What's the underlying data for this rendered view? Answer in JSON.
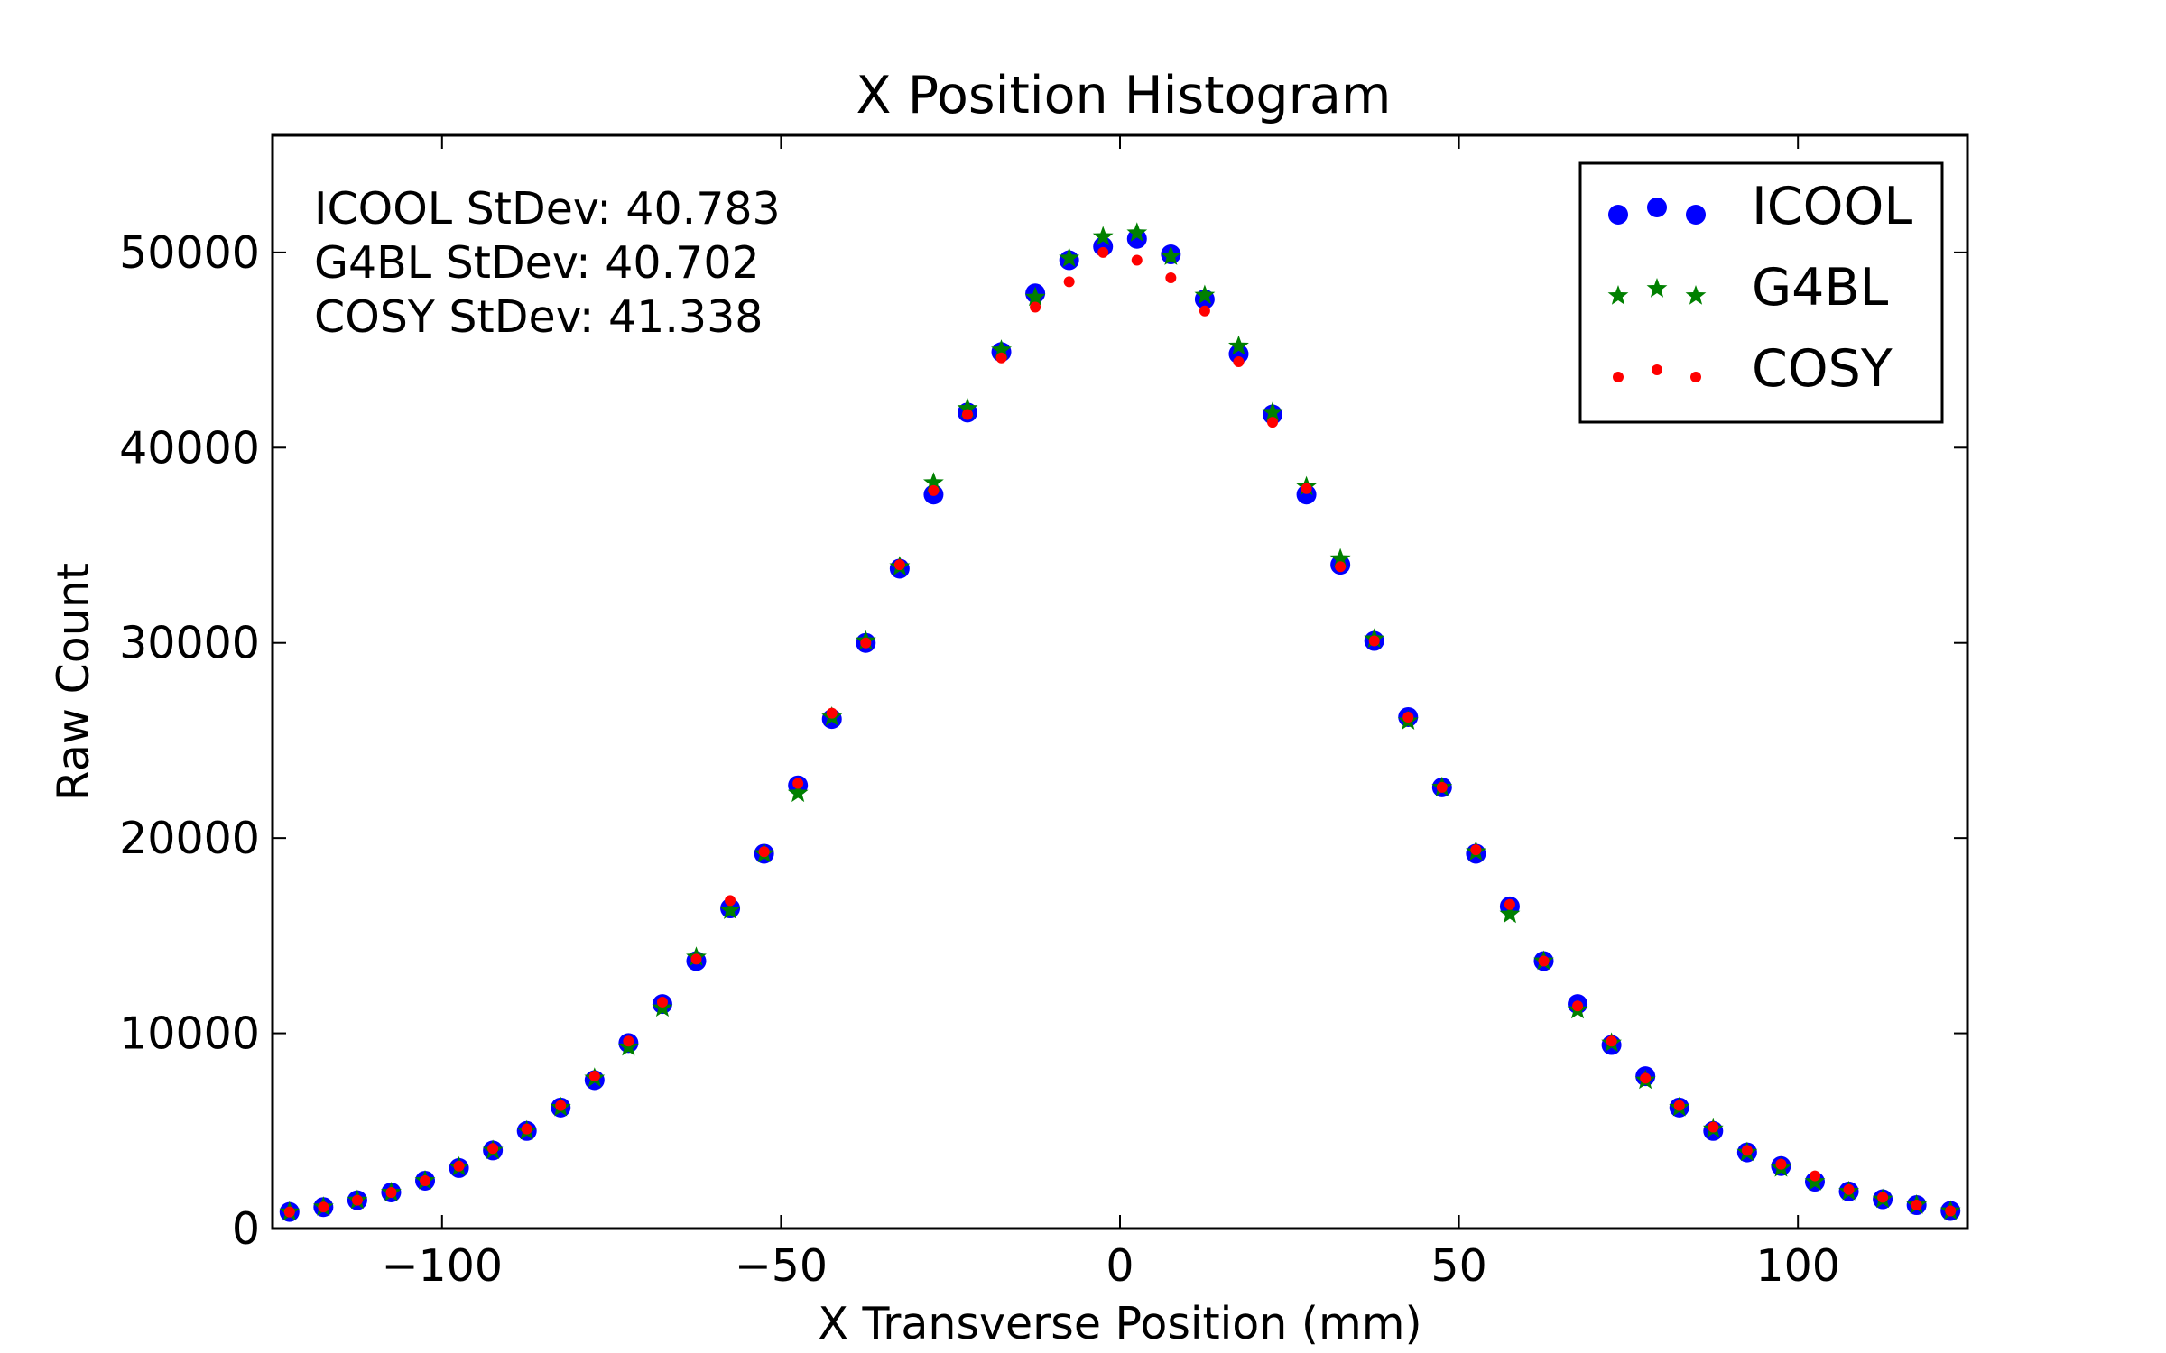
{
  "chart_data": {
    "type": "scatter",
    "title": "X Position Histogram",
    "xlabel": "X Transverse Position (mm)",
    "ylabel": "Raw Count",
    "xlim": [
      -125,
      125
    ],
    "ylim": [
      0,
      56000
    ],
    "xticks": [
      -100,
      -50,
      0,
      50,
      100
    ],
    "xtick_labels": [
      "−100",
      "−50",
      "0",
      "50",
      "100"
    ],
    "yticks": [
      0,
      10000,
      20000,
      30000,
      40000,
      50000
    ],
    "ytick_labels": [
      "0",
      "10000",
      "20000",
      "30000",
      "40000",
      "50000"
    ],
    "grid": false,
    "legend_position": "top-right",
    "annotations": [
      "ICOOL StDev: 40.783",
      "G4BL StDev: 40.702",
      "COSY StDev: 41.338"
    ],
    "x": [
      -122.5,
      -117.5,
      -112.5,
      -107.5,
      -102.5,
      -97.5,
      -92.5,
      -87.5,
      -82.5,
      -77.5,
      -72.5,
      -67.5,
      -62.5,
      -57.5,
      -52.5,
      -47.5,
      -42.5,
      -37.5,
      -32.5,
      -27.5,
      -22.5,
      -17.5,
      -12.5,
      -7.5,
      -2.5,
      2.5,
      7.5,
      12.5,
      17.5,
      22.5,
      27.5,
      32.5,
      37.5,
      42.5,
      47.5,
      52.5,
      57.5,
      62.5,
      67.5,
      72.5,
      77.5,
      82.5,
      87.5,
      92.5,
      97.5,
      102.5,
      107.5,
      112.5,
      117.5,
      122.5
    ],
    "series": [
      {
        "name": "ICOOL",
        "marker": "circle",
        "color": "#0000ff",
        "values": [
          850,
          1100,
          1450,
          1850,
          2450,
          3100,
          4000,
          5000,
          6200,
          7600,
          9500,
          11500,
          13700,
          16400,
          19200,
          22700,
          26100,
          30000,
          33800,
          37600,
          41800,
          44900,
          47900,
          49600,
          50300,
          50700,
          49900,
          47600,
          44800,
          41700,
          37600,
          34000,
          30100,
          26200,
          22600,
          19200,
          16500,
          13700,
          11500,
          9400,
          7800,
          6200,
          5000,
          3900,
          3200,
          2400,
          1900,
          1500,
          1200,
          900
        ]
      },
      {
        "name": "G4BL",
        "marker": "star",
        "color": "#008000",
        "values": [
          850,
          1100,
          1450,
          1850,
          2450,
          3150,
          4000,
          5000,
          6200,
          7700,
          9300,
          11300,
          13900,
          16300,
          19200,
          22300,
          26200,
          30100,
          33900,
          38200,
          42000,
          45000,
          47700,
          49700,
          50800,
          51000,
          49800,
          47800,
          45200,
          41800,
          38000,
          34300,
          30200,
          26000,
          22600,
          19300,
          16100,
          13700,
          11200,
          9500,
          7600,
          6200,
          5100,
          3900,
          3100,
          2400,
          1900,
          1500,
          1200,
          900
        ]
      },
      {
        "name": "COSY",
        "marker": "dot",
        "color": "#ff0000",
        "values": [
          850,
          1100,
          1450,
          1850,
          2450,
          3200,
          4100,
          5100,
          6300,
          7800,
          9600,
          11600,
          13800,
          16800,
          19300,
          22800,
          26400,
          30000,
          34000,
          37800,
          41700,
          44600,
          47200,
          48500,
          50000,
          49600,
          48700,
          47000,
          44400,
          41300,
          37900,
          33900,
          30100,
          26200,
          22600,
          19400,
          16600,
          13700,
          11400,
          9600,
          7700,
          6300,
          5200,
          4000,
          3300,
          2700,
          2000,
          1600,
          1200,
          900
        ]
      }
    ]
  }
}
